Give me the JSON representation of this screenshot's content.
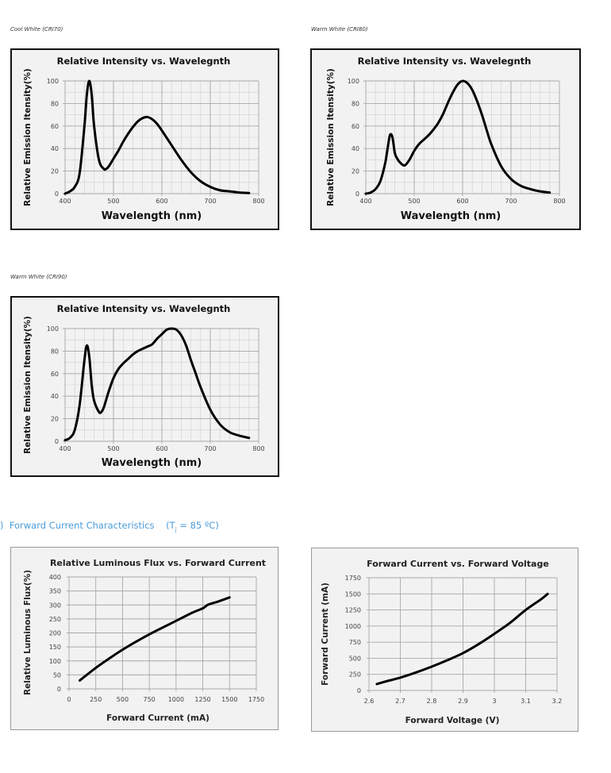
{
  "captions": [
    "Cool White (CRI70)",
    "Warm White (CRI80)",
    "Warm White (CRI90)"
  ],
  "section": {
    "prefix": ")",
    "title": "Forward Current Characteristics",
    "cond_open": "(T",
    "cond_sub": "j",
    "cond_rest": " = 85 ºC)"
  },
  "colors": {
    "section": "#4a9bd8",
    "line": "#000000",
    "grid": "#b8b8b8",
    "plot_bg": "#f2f2f2"
  },
  "chart_data": [
    {
      "type": "line",
      "title": "Relative Intensity vs. Wavelegnth",
      "xlabel": "Wavelength (nm)",
      "ylabel": "Relative Emission Itensity(%)",
      "xlim": [
        400,
        800
      ],
      "ylim": [
        0,
        100
      ],
      "xticks": [
        "400",
        "500",
        "600",
        "700",
        "800"
      ],
      "yticks": [
        "0",
        "20",
        "40",
        "60",
        "80",
        "100"
      ],
      "grid": true,
      "series": [
        {
          "name": "Cool White (CRI70)",
          "x": [
            400,
            410,
            420,
            430,
            440,
            445,
            450,
            455,
            460,
            470,
            480,
            485,
            490,
            500,
            510,
            520,
            530,
            540,
            550,
            560,
            570,
            580,
            590,
            600,
            620,
            640,
            660,
            680,
            700,
            720,
            740,
            760,
            780
          ],
          "y": [
            0,
            2,
            6,
            18,
            60,
            88,
            100,
            88,
            60,
            30,
            22,
            22,
            24,
            31,
            38,
            46,
            53,
            59,
            64,
            67,
            68,
            66,
            62,
            56,
            43,
            30,
            19,
            11,
            6,
            3,
            2,
            1,
            0.5
          ]
        }
      ]
    },
    {
      "type": "line",
      "title": "Relative Intensity vs. Wavelegnth",
      "xlabel": "Wavelength (nm)",
      "ylabel": "Relative Emission Itensity(%)",
      "xlim": [
        400,
        800
      ],
      "ylim": [
        0,
        100
      ],
      "xticks": [
        "400",
        "500",
        "600",
        "700",
        "800"
      ],
      "yticks": [
        "0",
        "20",
        "40",
        "60",
        "80",
        "100"
      ],
      "grid": true,
      "series": [
        {
          "name": "Warm White (CRI80)",
          "x": [
            400,
            410,
            420,
            430,
            440,
            445,
            450,
            455,
            460,
            465,
            470,
            480,
            490,
            500,
            510,
            520,
            530,
            540,
            550,
            560,
            570,
            580,
            590,
            600,
            610,
            620,
            630,
            640,
            650,
            660,
            680,
            700,
            720,
            740,
            760,
            780
          ],
          "y": [
            0,
            1,
            4,
            11,
            27,
            40,
            52,
            50,
            36,
            31,
            28,
            25,
            30,
            38,
            44,
            48,
            52,
            57,
            63,
            71,
            81,
            90,
            97,
            100,
            98,
            92,
            82,
            70,
            56,
            43,
            24,
            13,
            7,
            4,
            2,
            1
          ]
        }
      ]
    },
    {
      "type": "line",
      "title": "Relative Intensity vs. Wavelegnth",
      "xlabel": "Wavelength (nm)",
      "ylabel": "Relative Emission Itensity(%)",
      "xlim": [
        400,
        800
      ],
      "ylim": [
        0,
        100
      ],
      "xticks": [
        "400",
        "500",
        "600",
        "700",
        "800"
      ],
      "yticks": [
        "0",
        "20",
        "40",
        "60",
        "80",
        "100"
      ],
      "grid": true,
      "series": [
        {
          "name": "Warm White (CRI90)",
          "x": [
            400,
            410,
            420,
            430,
            440,
            445,
            450,
            455,
            460,
            470,
            475,
            480,
            490,
            500,
            510,
            520,
            530,
            540,
            550,
            560,
            570,
            580,
            590,
            600,
            610,
            620,
            630,
            640,
            650,
            660,
            670,
            680,
            700,
            720,
            740,
            760,
            780
          ],
          "y": [
            1,
            3,
            10,
            32,
            72,
            85,
            75,
            50,
            36,
            26,
            26,
            30,
            44,
            56,
            64,
            69,
            73,
            77,
            80,
            82,
            84,
            86,
            91,
            95,
            99,
            100,
            99,
            94,
            85,
            72,
            60,
            48,
            28,
            15,
            8,
            5,
            3
          ]
        }
      ]
    },
    {
      "type": "line",
      "title": "Relative Luminous Flux vs. Forward Current",
      "xlabel": "Forward Current (mA)",
      "ylabel": "Relative Luminous Flux(%)",
      "xlim": [
        0,
        1750
      ],
      "ylim": [
        0,
        400
      ],
      "xticks": [
        "0",
        "250",
        "500",
        "750",
        "1000",
        "1250",
        "1500",
        "1750"
      ],
      "yticks": [
        "0",
        "50",
        "100",
        "150",
        "200",
        "250",
        "300",
        "350",
        "400"
      ],
      "grid": true,
      "series": [
        {
          "name": "Relative Luminous Flux",
          "x": [
            100,
            250,
            400,
            500,
            600,
            750,
            900,
            1000,
            1150,
            1250,
            1300,
            1400,
            1500
          ],
          "y": [
            30,
            75,
            115,
            140,
            163,
            195,
            224,
            243,
            272,
            288,
            301,
            313,
            327
          ]
        }
      ]
    },
    {
      "type": "line",
      "title": "Forward Current vs. Forward Voltage",
      "xlabel": "Forward Voltage (V)",
      "ylabel": "Forward Current (mA)",
      "xlim": [
        2.6,
        3.2
      ],
      "ylim": [
        0,
        1750
      ],
      "xticks": [
        "2.6",
        "2.7",
        "2.8",
        "2.9",
        "3",
        "3.1",
        "3.2"
      ],
      "yticks": [
        "0",
        "250",
        "500",
        "750",
        "1000",
        "1250",
        "1500",
        "1750"
      ],
      "grid": true,
      "series": [
        {
          "name": "Forward Current",
          "x": [
            2.625,
            2.65,
            2.7,
            2.75,
            2.8,
            2.85,
            2.9,
            2.95,
            3.0,
            3.05,
            3.1,
            3.15,
            3.17
          ],
          "y": [
            100,
            135,
            200,
            280,
            370,
            470,
            580,
            720,
            880,
            1050,
            1250,
            1420,
            1500
          ]
        }
      ]
    }
  ]
}
